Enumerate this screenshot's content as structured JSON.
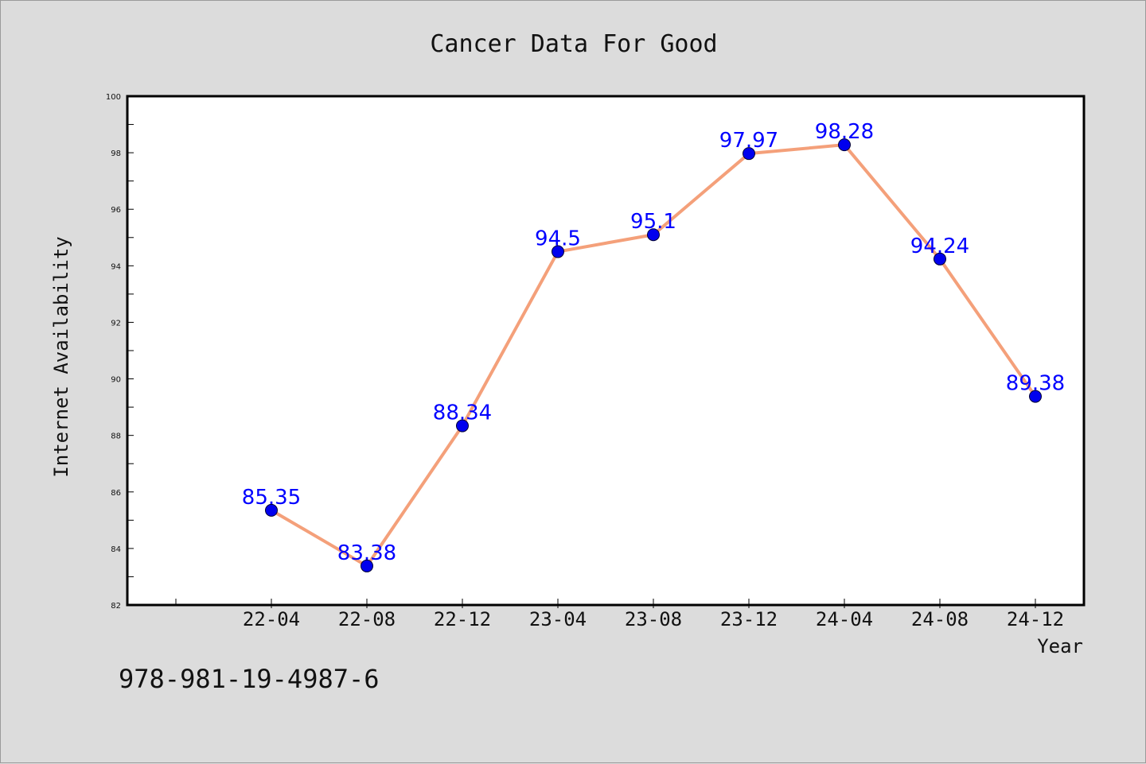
{
  "footer_code": "978-981-19-4987-6",
  "chart_data": {
    "type": "line",
    "title": "Cancer Data For Good",
    "xlabel": "Year",
    "ylabel": "Internet Availability",
    "categories": [
      "22-04",
      "22-08",
      "22-12",
      "23-04",
      "23-08",
      "23-12",
      "24-04",
      "24-08",
      "24-12"
    ],
    "values": [
      85.35,
      83.38,
      88.34,
      94.5,
      95.1,
      97.97,
      98.28,
      94.24,
      89.38
    ],
    "data_labels": [
      "85.35",
      "83.38",
      "88.34",
      "94.5",
      "95.1",
      "97.97",
      "98.28",
      "94.24",
      "89.38"
    ],
    "ylim": [
      82,
      100
    ],
    "yticks": [
      82,
      84,
      86,
      88,
      90,
      92,
      94,
      96,
      98,
      100
    ],
    "grid": false,
    "legend": "none",
    "colors": {
      "line": "#f4a07a",
      "marker": "#0000ee",
      "data_label": "#0000ff",
      "background": "#dcdcdc",
      "plot_background": "#ffffff"
    }
  }
}
